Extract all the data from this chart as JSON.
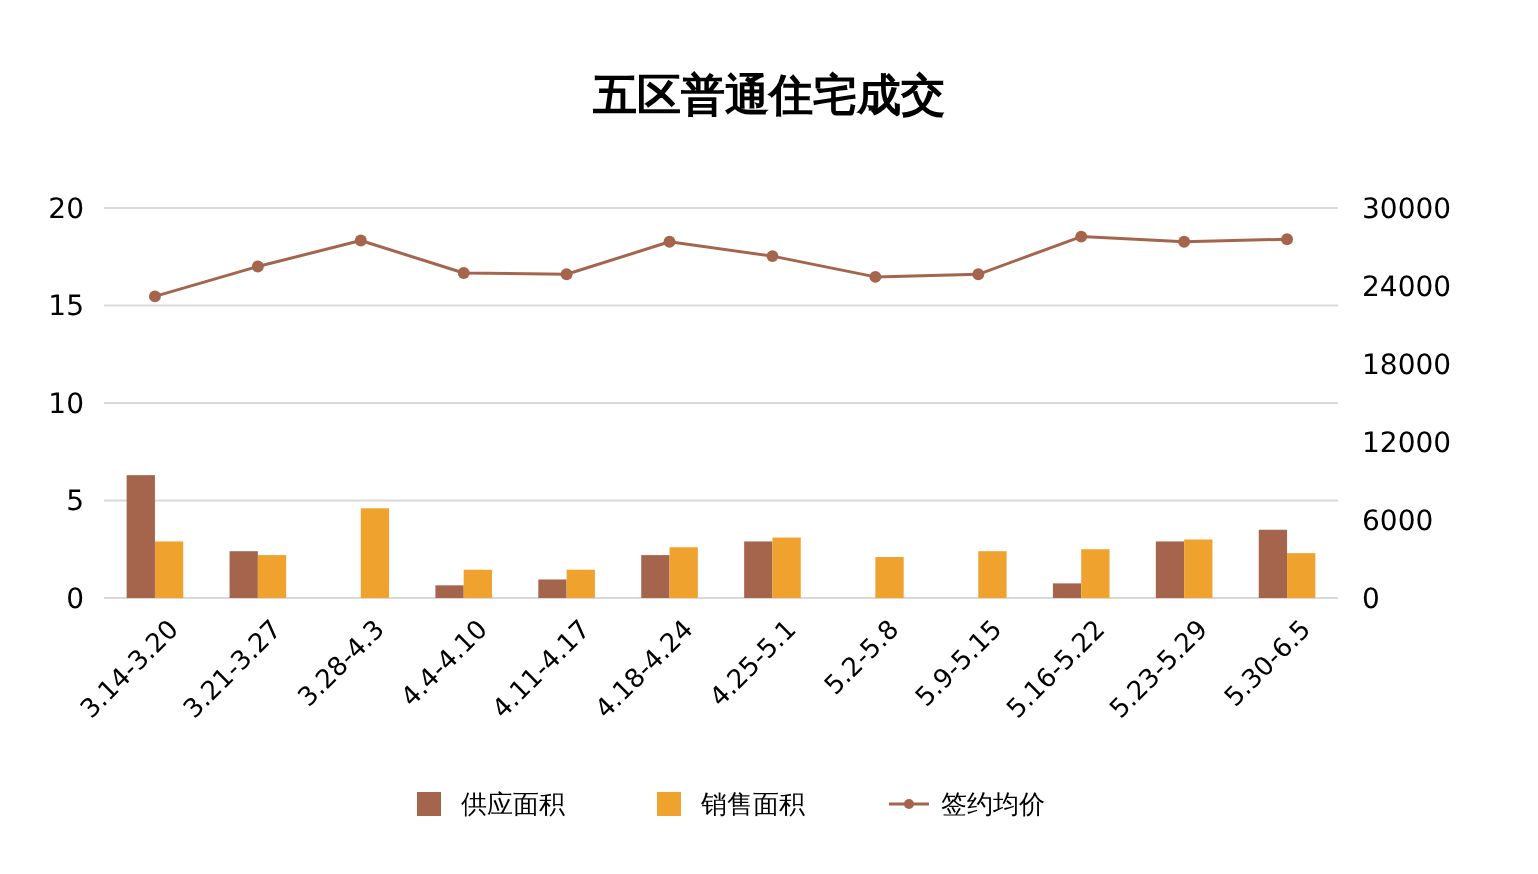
{
  "chart_data": {
    "type": "bar",
    "title": "五区普通住宅成交",
    "categories": [
      "3.14-3.20",
      "3.21-3.27",
      "3.28-4.3",
      "4.4-4.10",
      "4.11-4.17",
      "4.18-4.24",
      "4.25-5.1",
      "5.2-5.8",
      "5.9-5.15",
      "5.16-5.22",
      "5.23-5.29",
      "5.30-6.5"
    ],
    "series": [
      {
        "name": "供应面积",
        "color": "#a5654d",
        "values": [
          6.3,
          2.4,
          null,
          0.65,
          0.95,
          2.2,
          2.9,
          null,
          null,
          0.75,
          2.9,
          3.5
        ]
      },
      {
        "name": "销售面积",
        "color": "#f0a22e",
        "values": [
          2.9,
          2.2,
          4.6,
          1.45,
          1.45,
          2.6,
          3.1,
          2.1,
          2.4,
          2.5,
          3.0,
          2.3
        ]
      },
      {
        "name": "签约均价",
        "type": "line",
        "axis": "y2",
        "color": "#a5654d",
        "marker": "circle",
        "values": [
          23200,
          25500,
          27500,
          25000,
          24900,
          27400,
          26300,
          24700,
          24900,
          27800,
          27400,
          27600
        ]
      }
    ],
    "ylim": [
      0,
      20
    ],
    "yticks": [
      0,
      5,
      10,
      15,
      20
    ],
    "y2lim": [
      0,
      30000
    ],
    "y2ticks": [
      0,
      6000,
      12000,
      18000,
      24000,
      30000
    ],
    "grid": "y",
    "legend": "bottom"
  }
}
